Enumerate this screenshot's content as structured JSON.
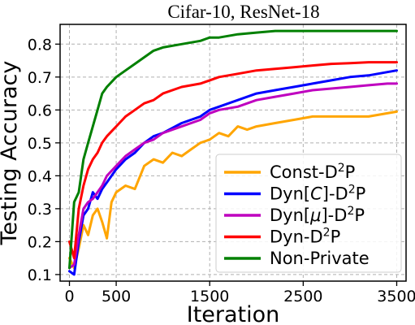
{
  "chart_data": {
    "type": "line",
    "title": "Cifar-10, ResNet-18",
    "xlabel": "Iteration",
    "ylabel": "Testing Accuracy",
    "xlim": [
      -100,
      3600
    ],
    "ylim": [
      0.08,
      0.86
    ],
    "xticks": [
      0,
      500,
      1500,
      2500,
      3500
    ],
    "yticks": [
      0.1,
      0.2,
      0.3,
      0.4,
      0.5,
      0.6,
      0.7,
      0.8
    ],
    "ytick_labels": [
      "0.1",
      "0.2",
      "0.3",
      "0.4",
      "0.5",
      "0.6",
      "0.7",
      "0.8"
    ],
    "xtick_labels": [
      "0",
      "500",
      "1500",
      "2500",
      "3500"
    ],
    "grid": true,
    "legend_position": "lower-right",
    "series": [
      {
        "name": "Const-D²P",
        "legend_base": "Const-D",
        "legend_sup": "2",
        "legend_tail": "P",
        "color": "#ffa500",
        "x": [
          0,
          50,
          100,
          150,
          200,
          250,
          300,
          350,
          400,
          450,
          500,
          600,
          700,
          800,
          900,
          1000,
          1100,
          1200,
          1300,
          1400,
          1500,
          1600,
          1700,
          1800,
          1900,
          2000,
          2200,
          2400,
          2600,
          2800,
          3000,
          3200,
          3400,
          3500
        ],
        "y": [
          0.15,
          0.12,
          0.18,
          0.25,
          0.22,
          0.28,
          0.3,
          0.26,
          0.21,
          0.32,
          0.35,
          0.37,
          0.36,
          0.43,
          0.45,
          0.44,
          0.47,
          0.46,
          0.48,
          0.5,
          0.51,
          0.53,
          0.52,
          0.55,
          0.54,
          0.55,
          0.56,
          0.57,
          0.58,
          0.58,
          0.58,
          0.58,
          0.59,
          0.595
        ]
      },
      {
        "name": "Dyn[C]-D²P",
        "legend_base": "Dyn[",
        "legend_italic": "C",
        "legend_mid": "]-D",
        "legend_sup": "2",
        "legend_tail": "P",
        "color": "#0000ff",
        "x": [
          0,
          50,
          100,
          150,
          200,
          250,
          300,
          350,
          400,
          500,
          600,
          700,
          800,
          900,
          1000,
          1200,
          1400,
          1500,
          1600,
          1800,
          2000,
          2200,
          2400,
          2600,
          2800,
          3000,
          3200,
          3400,
          3500
        ],
        "y": [
          0.11,
          0.1,
          0.2,
          0.28,
          0.3,
          0.35,
          0.33,
          0.36,
          0.38,
          0.42,
          0.45,
          0.47,
          0.5,
          0.52,
          0.53,
          0.56,
          0.58,
          0.6,
          0.61,
          0.63,
          0.65,
          0.66,
          0.67,
          0.68,
          0.69,
          0.7,
          0.705,
          0.715,
          0.72
        ]
      },
      {
        "name": "Dyn[μ]-D²P",
        "legend_base": "Dyn[",
        "legend_italic": "μ",
        "legend_mid": "]-D",
        "legend_sup": "2",
        "legend_tail": "P",
        "color": "#bf00bf",
        "x": [
          0,
          50,
          100,
          150,
          200,
          250,
          300,
          350,
          400,
          500,
          600,
          700,
          800,
          900,
          1000,
          1200,
          1400,
          1500,
          1600,
          1800,
          2000,
          2200,
          2400,
          2600,
          2800,
          3000,
          3200,
          3400,
          3500
        ],
        "y": [
          0.12,
          0.13,
          0.22,
          0.3,
          0.32,
          0.33,
          0.35,
          0.37,
          0.4,
          0.43,
          0.46,
          0.48,
          0.5,
          0.51,
          0.53,
          0.55,
          0.57,
          0.59,
          0.6,
          0.61,
          0.63,
          0.64,
          0.65,
          0.66,
          0.665,
          0.67,
          0.675,
          0.68,
          0.68
        ]
      },
      {
        "name": "Dyn-D²P",
        "legend_base": "Dyn-D",
        "legend_sup": "2",
        "legend_tail": "P",
        "color": "#ff0000",
        "x": [
          0,
          50,
          100,
          150,
          200,
          250,
          300,
          350,
          400,
          500,
          600,
          700,
          800,
          900,
          1000,
          1200,
          1400,
          1500,
          1600,
          1800,
          2000,
          2200,
          2400,
          2600,
          2800,
          3000,
          3200,
          3400,
          3500
        ],
        "y": [
          0.2,
          0.15,
          0.3,
          0.37,
          0.42,
          0.45,
          0.47,
          0.5,
          0.52,
          0.55,
          0.58,
          0.6,
          0.62,
          0.63,
          0.65,
          0.67,
          0.68,
          0.69,
          0.7,
          0.71,
          0.72,
          0.725,
          0.73,
          0.735,
          0.74,
          0.742,
          0.745,
          0.745,
          0.745
        ]
      },
      {
        "name": "Non-Private",
        "legend_base": "Non-Private",
        "color": "#008000",
        "x": [
          0,
          50,
          100,
          150,
          200,
          250,
          300,
          350,
          400,
          500,
          600,
          700,
          800,
          900,
          1000,
          1200,
          1400,
          1500,
          1600,
          1800,
          2000,
          2200,
          2300,
          2400,
          2600,
          2800,
          3000,
          3200,
          3400,
          3500
        ],
        "y": [
          0.12,
          0.32,
          0.35,
          0.45,
          0.5,
          0.55,
          0.6,
          0.65,
          0.67,
          0.7,
          0.72,
          0.74,
          0.76,
          0.78,
          0.79,
          0.8,
          0.81,
          0.82,
          0.82,
          0.83,
          0.835,
          0.84,
          0.84,
          0.84,
          0.84,
          0.84,
          0.84,
          0.84,
          0.84,
          0.84
        ]
      }
    ]
  }
}
